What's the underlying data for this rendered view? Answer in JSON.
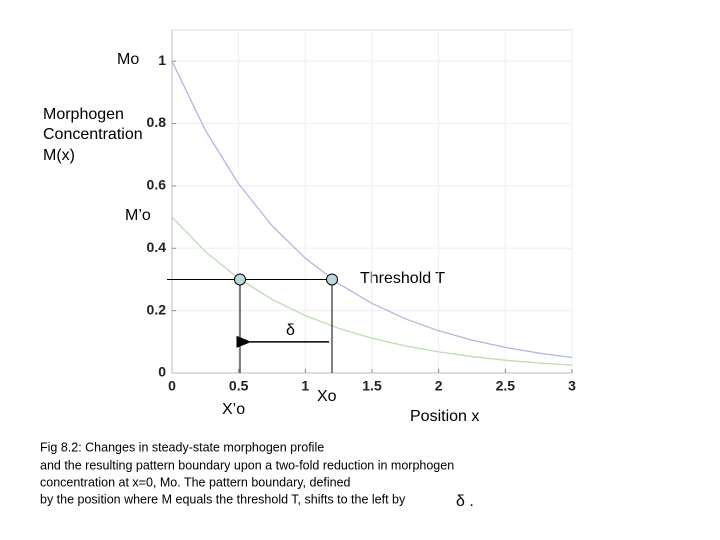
{
  "chart_data": {
    "type": "line",
    "x": [
      0,
      0.25,
      0.5,
      0.75,
      1,
      1.25,
      1.5,
      1.75,
      2,
      2.25,
      2.5,
      2.75,
      3
    ],
    "series": [
      {
        "color": "#b4b4e4",
        "values": [
          1,
          0.7788,
          0.6065,
          0.4724,
          0.3679,
          0.2865,
          0.2231,
          0.1738,
          0.1353,
          0.1054,
          0.0821,
          0.0639,
          0.0498
        ]
      },
      {
        "color": "#bcdcb0",
        "values": [
          0.5,
          0.3894,
          0.3033,
          0.2362,
          0.1839,
          0.1433,
          0.1116,
          0.0869,
          0.0677,
          0.0527,
          0.041,
          0.032,
          0.0249
        ]
      }
    ],
    "xlim": [
      0,
      3
    ],
    "xticks": [
      0,
      0.5,
      1,
      1.5,
      2,
      2.5,
      3
    ],
    "ylim": [
      0,
      1.1
    ],
    "yticks": [
      0,
      0.2,
      0.4,
      0.6,
      0.8,
      1
    ],
    "grid": true,
    "ylabel": [
      "Morphogen",
      "Concentration",
      "M(x)"
    ],
    "xlabel": "Position x",
    "threshold": {
      "label": "Threshold T",
      "value": 0.3,
      "crossings": [
        0.51,
        1.2
      ]
    },
    "shift": {
      "label": "δ",
      "y": 0.1
    },
    "annotations": {
      "mo": "Mo",
      "mo_prime": "M’o",
      "xo_prime": "X’o",
      "xo": "Xo"
    },
    "caption": [
      "Fig 8.2: Changes in steady-state morphogen profile",
      "and the resulting pattern boundary upon a two-fold reduction in morphogen",
      "concentration at x=0, Mo.   The pattern boundary, defined",
      "by the position where M equals the threshold T,  shifts to the left by"
    ],
    "caption_end": "δ ."
  }
}
